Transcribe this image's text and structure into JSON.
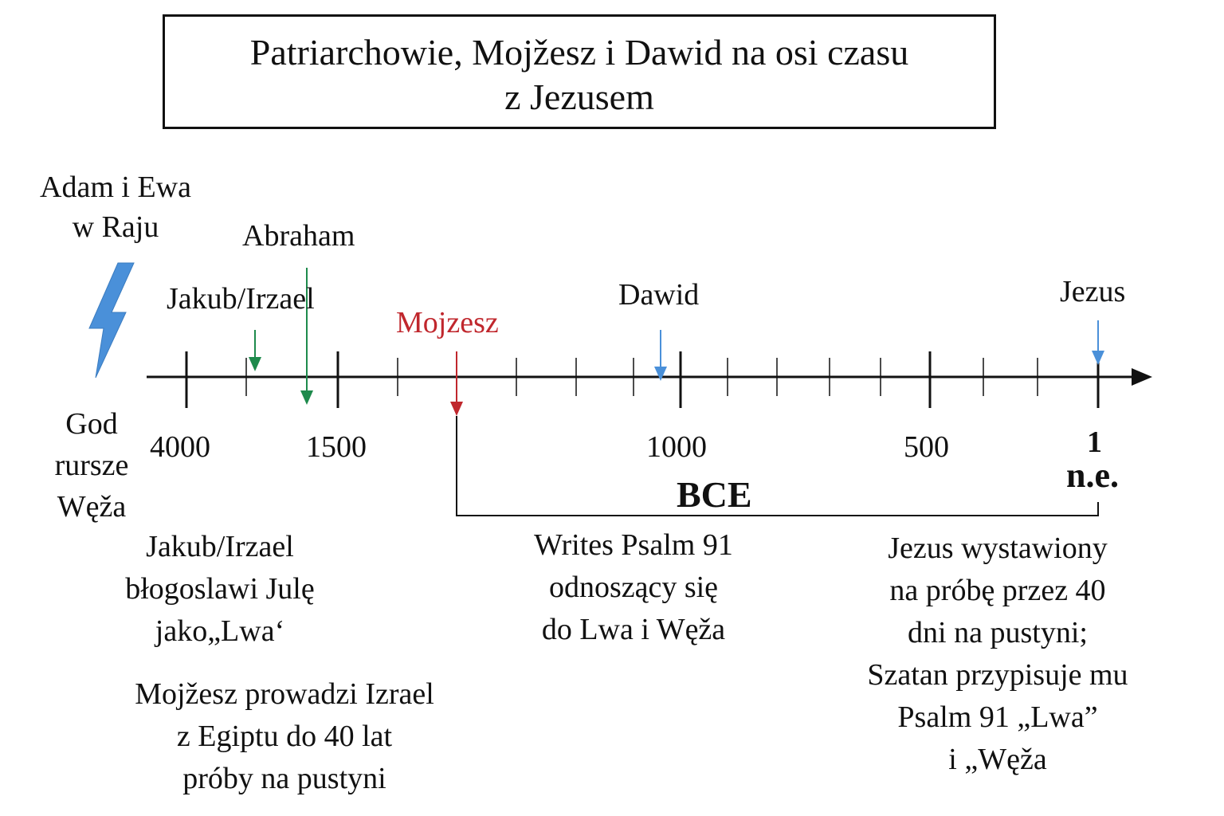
{
  "title": {
    "line1": "Patriarchowie, Mojžesz i Dawid na osi czasu",
    "line2": "z Jezusem"
  },
  "events": {
    "adam": [
      "Adam i Ewa",
      "w Raju"
    ],
    "abraham": "Abraham",
    "jakub": "Jakub/Irzael",
    "mojzesz": "Mojzesz",
    "dawid": "Dawid",
    "jezus": "Jezus"
  },
  "axis": {
    "ticks": [
      "4000",
      "1500",
      "1000",
      "500",
      "1"
    ],
    "ne_label": "n.e.",
    "bce_label": "BCE"
  },
  "god_curse": [
    "God",
    "rursze",
    "Węža"
  ],
  "notes": {
    "jakub": [
      "Jakub/Irzael",
      "błogoslawi Julę",
      "jako„Lwa‘"
    ],
    "mojzesz": [
      "Mojžesz prowadzi Izrael",
      "z Egiptu do 40 lat",
      "próby na pustyni"
    ],
    "dawid": [
      "Writes Psalm 91",
      "odnoszący się",
      "do Lwa i Węža"
    ],
    "jezus": [
      "Jezus wystawiony",
      "na próbę przez 40",
      "dni na pustyni;",
      "Szatan przypisuje mu",
      "Psalm 91 „Lwa”",
      "i „Węža"
    ]
  },
  "colors": {
    "lightning": "#4a90d9",
    "green_arrow": "#1e8a4c",
    "red_arrow": "#c0272d",
    "blue_arrow": "#4a90d9"
  }
}
